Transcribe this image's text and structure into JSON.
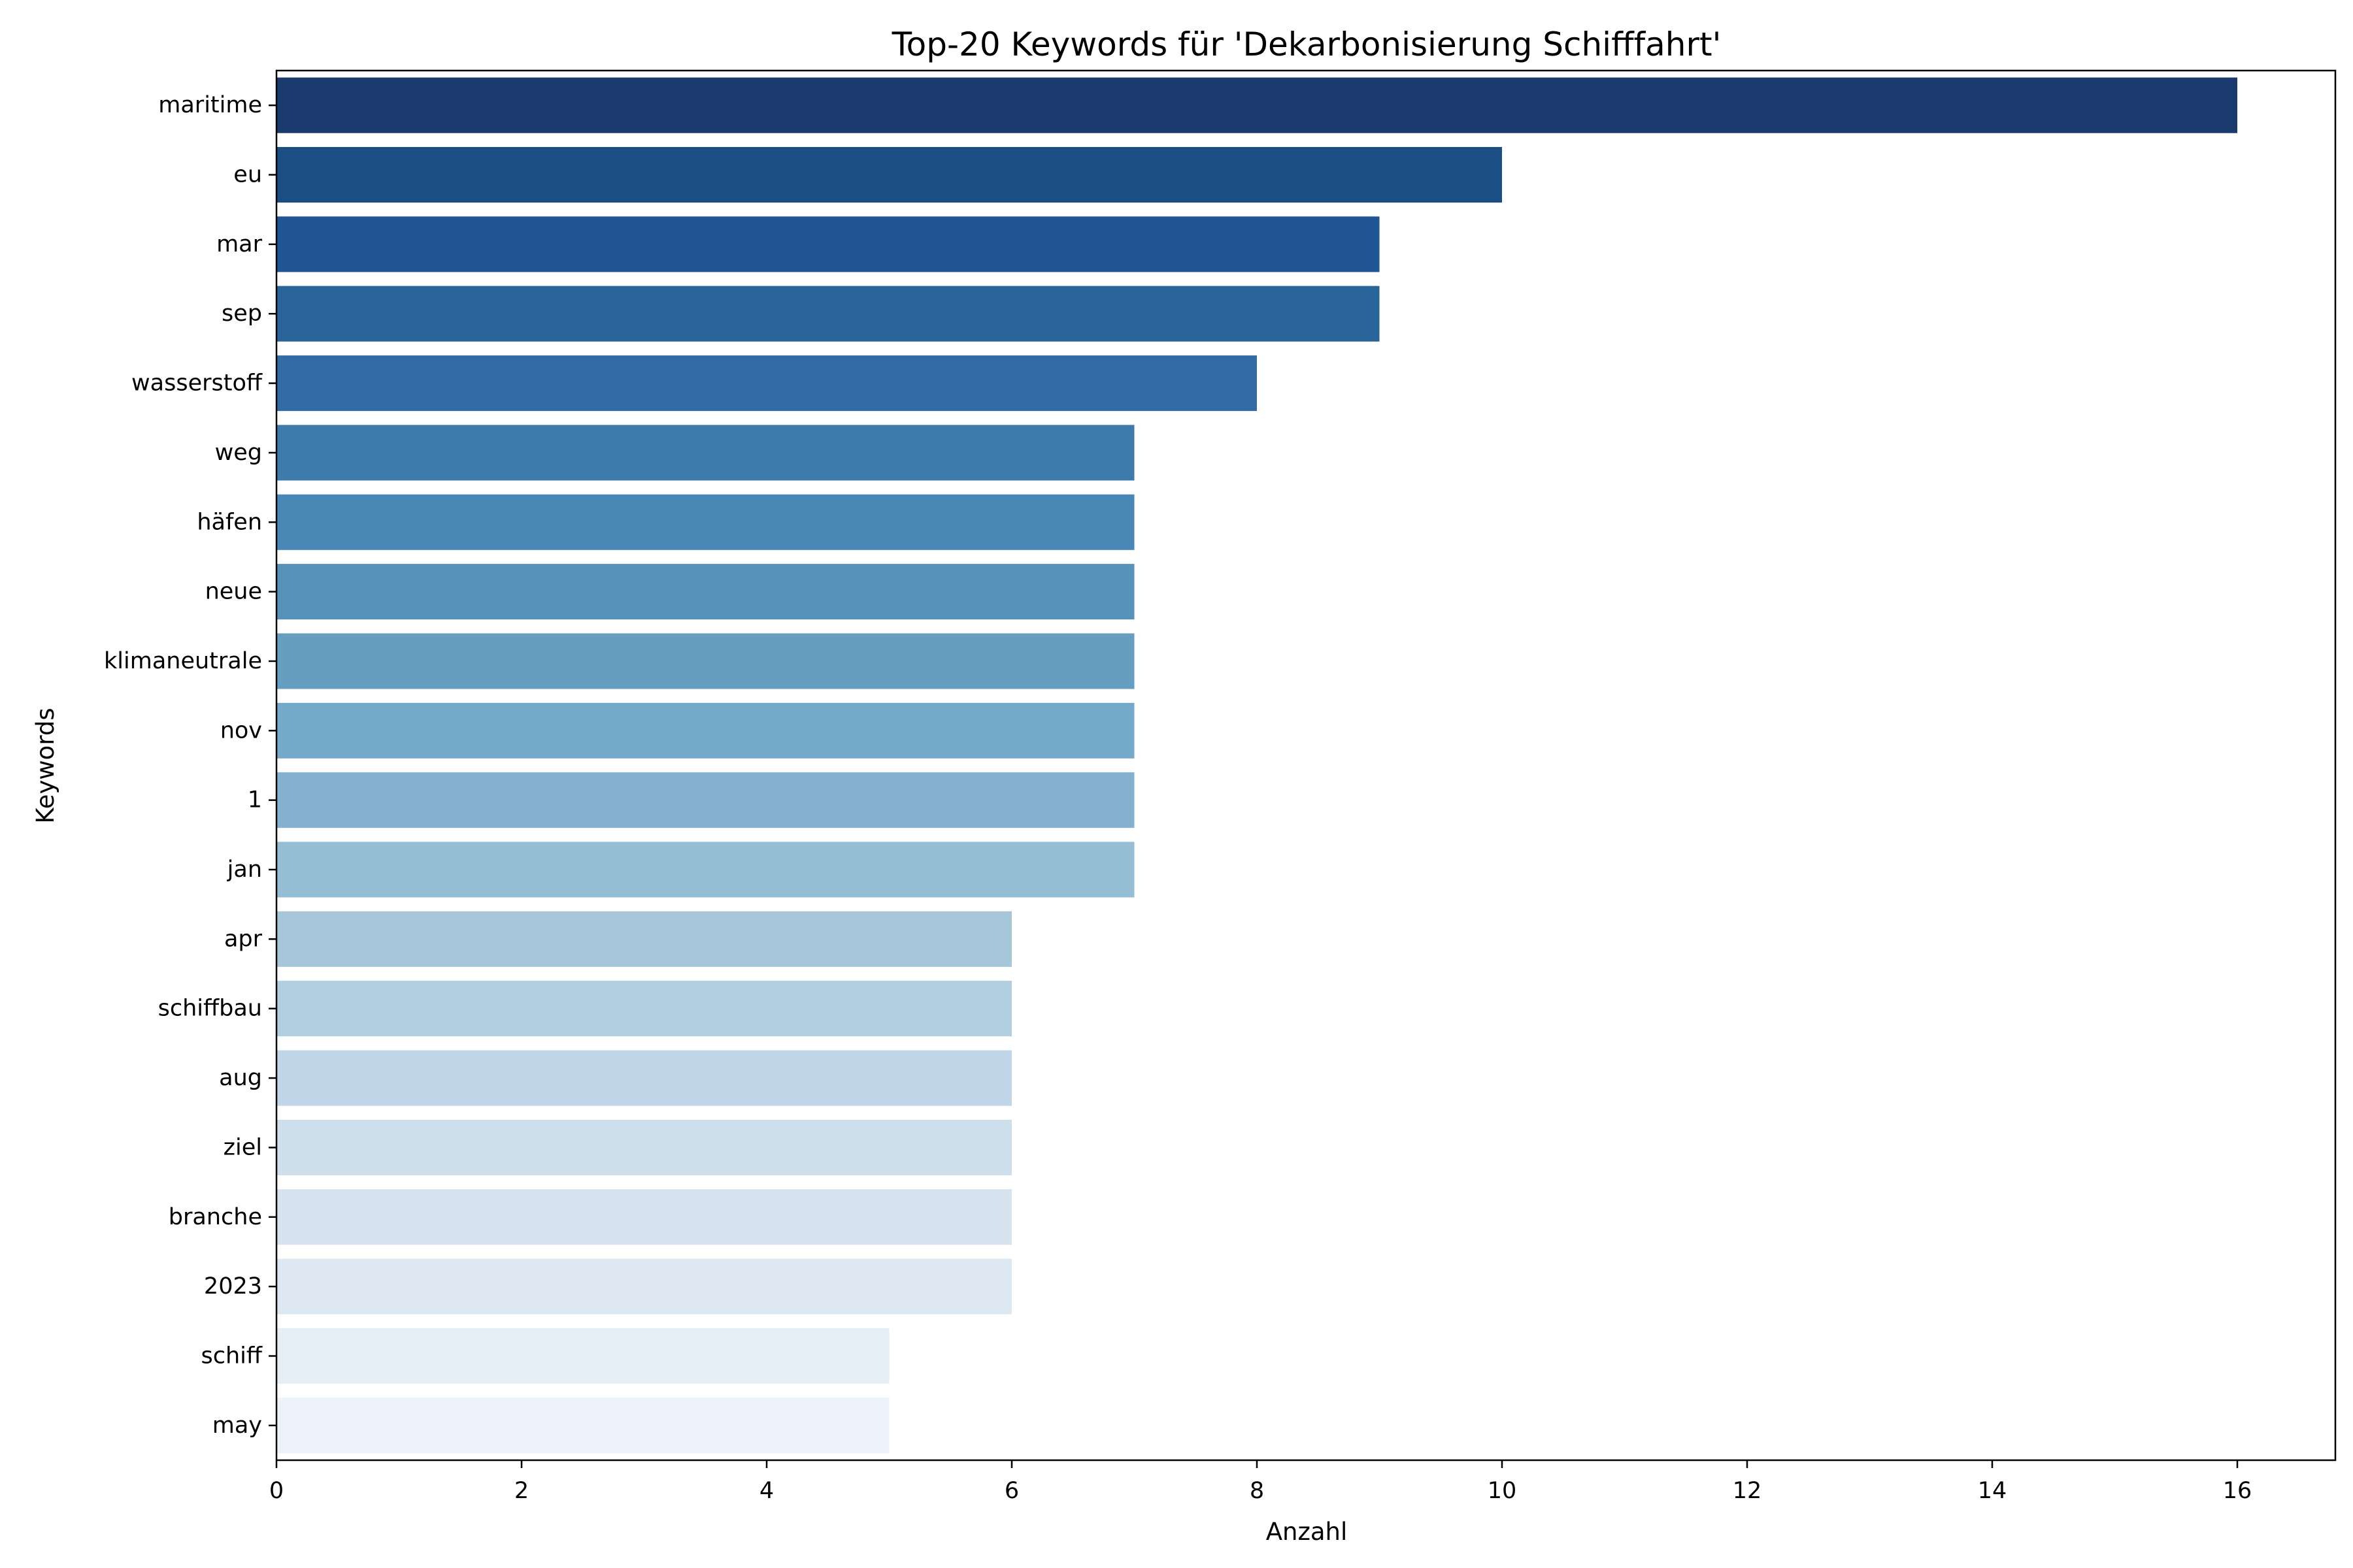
{
  "chart_data": {
    "type": "bar",
    "orientation": "horizontal",
    "title": "Top-20 Keywords für 'Dekarbonisierung Schifffahrt'",
    "xlabel": "Anzahl",
    "ylabel": "Keywords",
    "categories": [
      "maritime",
      "eu",
      "mar",
      "sep",
      "wasserstoff",
      "weg",
      "häfen",
      "neue",
      "klimaneutrale",
      "nov",
      "1",
      "jan",
      "apr",
      "schiffbau",
      "aug",
      "ziel",
      "branche",
      "2023",
      "schiff",
      "may"
    ],
    "values": [
      16,
      10,
      9,
      9,
      8,
      7,
      7,
      7,
      7,
      7,
      7,
      7,
      6,
      6,
      6,
      6,
      6,
      6,
      5,
      5
    ],
    "colors": [
      "#1b3a6e",
      "#1b4f84",
      "#1f5592",
      "#296599",
      "#316da4",
      "#3e7bad",
      "#4988b6",
      "#5692b9",
      "#669ec1",
      "#74a9c9",
      "#84b1cf",
      "#95bed5",
      "#a6c7da",
      "#b2cfe1",
      "#c1d6e8",
      "#cedfec",
      "#d6e3ef",
      "#dee8f3",
      "#e6eef6",
      "#edf3fa"
    ],
    "xlim": [
      0,
      16.8
    ],
    "xticks": [
      0,
      2,
      4,
      6,
      8,
      10,
      12,
      14,
      16
    ],
    "grid": false,
    "legend": "none"
  }
}
